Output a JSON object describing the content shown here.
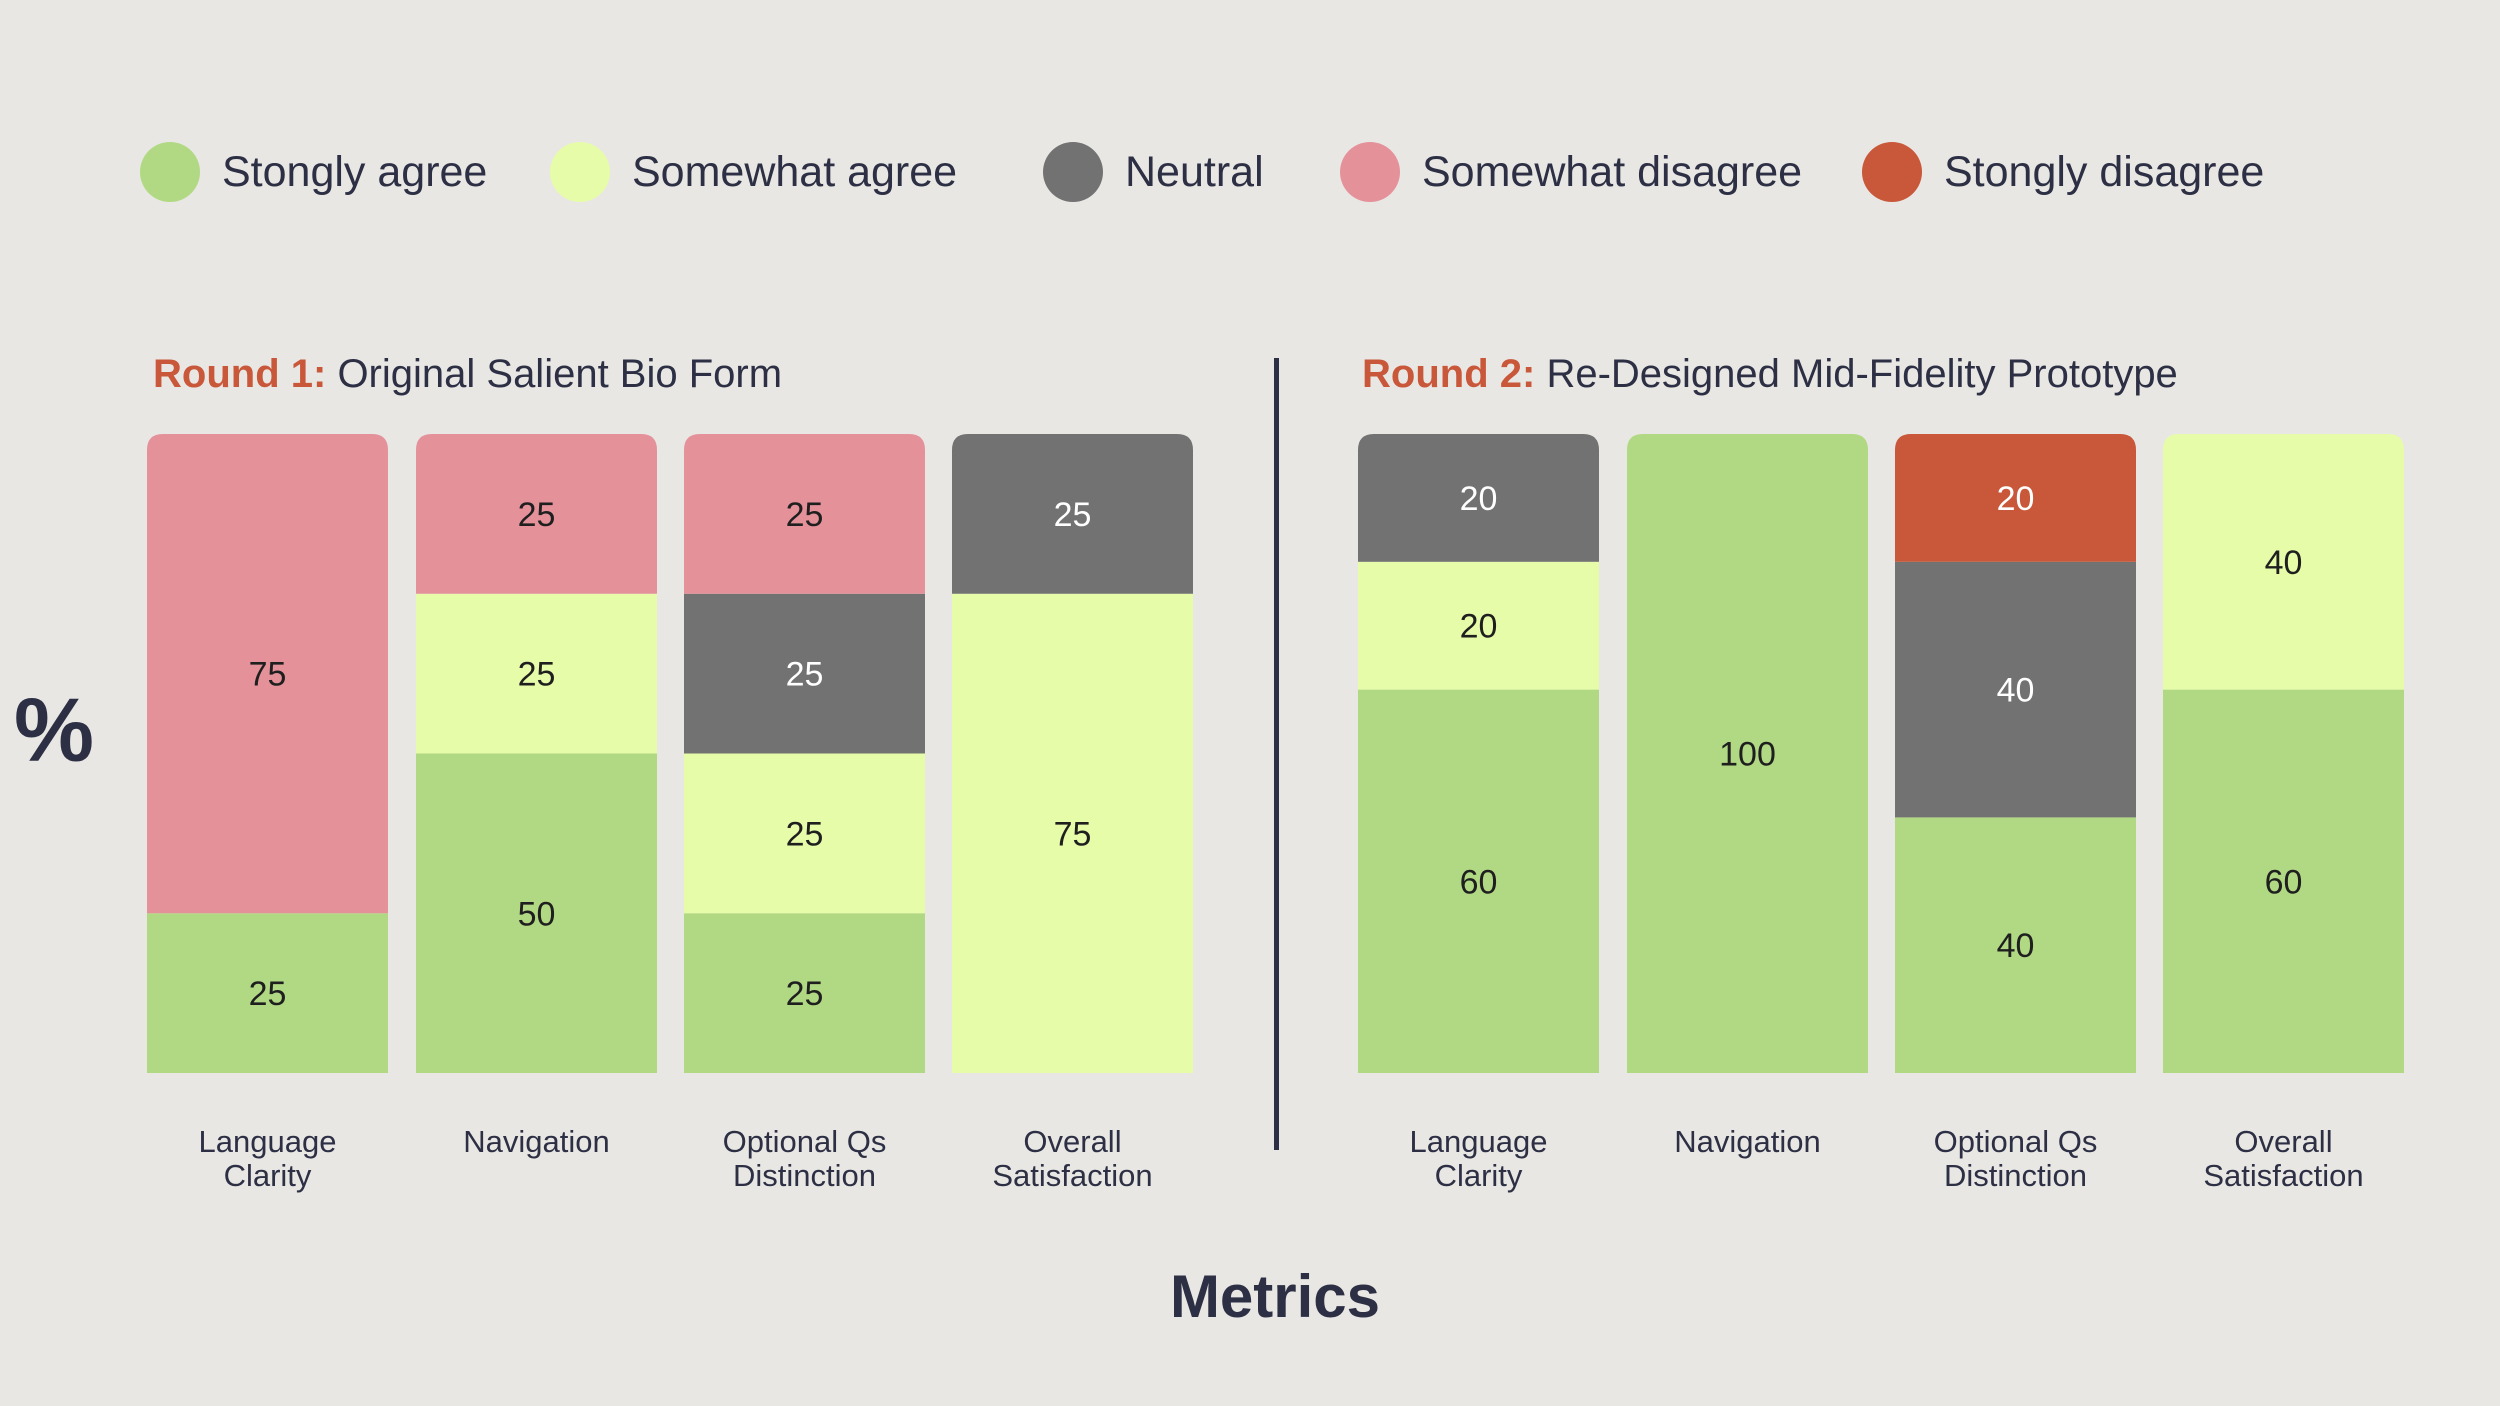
{
  "chart_data": {
    "type": "bar",
    "stacked": true,
    "ylabel": "%",
    "xlabel": "Metrics",
    "ylim": [
      0,
      100
    ],
    "legend": [
      {
        "key": "strongly_agree",
        "label": "Stongly agree",
        "color": "#b1d983"
      },
      {
        "key": "somewhat_agree",
        "label": "Somewhat agree",
        "color": "#e6fca9"
      },
      {
        "key": "neutral",
        "label": "Neutral",
        "color": "#727272"
      },
      {
        "key": "somewhat_disagree",
        "label": "Somewhat disagree",
        "color": "#e5919a"
      },
      {
        "key": "strongly_disagree",
        "label": "Stongly disagree",
        "color": "#c9573a"
      }
    ],
    "panels": [
      {
        "round_label": "Round 1:",
        "title": "Original Salient Bio Form",
        "categories": [
          "Language Clarity",
          "Navigation",
          "Optional Qs Distinction",
          "Overall Satisfaction"
        ],
        "category_lines": [
          [
            "Language",
            "Clarity"
          ],
          [
            "Navigation"
          ],
          [
            "Optional Qs",
            "Distinction"
          ],
          [
            "Overall",
            "Satisfaction"
          ]
        ],
        "series": [
          {
            "name": "Stongly agree",
            "key": "strongly_agree",
            "values": [
              25,
              50,
              25,
              0
            ]
          },
          {
            "name": "Somewhat agree",
            "key": "somewhat_agree",
            "values": [
              0,
              25,
              25,
              75
            ]
          },
          {
            "name": "Neutral",
            "key": "neutral",
            "values": [
              0,
              0,
              25,
              25
            ]
          },
          {
            "name": "Somewhat disagree",
            "key": "somewhat_disagree",
            "values": [
              75,
              25,
              25,
              0
            ]
          },
          {
            "name": "Stongly disagree",
            "key": "strongly_disagree",
            "values": [
              0,
              0,
              0,
              0
            ]
          }
        ]
      },
      {
        "round_label": "Round 2:",
        "title": "Re-Designed Mid-Fidelity Prototype",
        "categories": [
          "Language Clarity",
          "Navigation",
          "Optional Qs Distinction",
          "Overall Satisfaction"
        ],
        "category_lines": [
          [
            "Language",
            "Clarity"
          ],
          [
            "Navigation"
          ],
          [
            "Optional Qs",
            "Distinction"
          ],
          [
            "Overall",
            "Satisfaction"
          ]
        ],
        "series": [
          {
            "name": "Stongly agree",
            "key": "strongly_agree",
            "values": [
              60,
              100,
              40,
              60
            ]
          },
          {
            "name": "Somewhat agree",
            "key": "somewhat_agree",
            "values": [
              20,
              0,
              0,
              40
            ]
          },
          {
            "name": "Neutral",
            "key": "neutral",
            "values": [
              20,
              0,
              40,
              0
            ]
          },
          {
            "name": "Somewhat disagree",
            "key": "somewhat_disagree",
            "values": [
              0,
              0,
              0,
              0
            ]
          },
          {
            "name": "Stongly disagree",
            "key": "strongly_disagree",
            "values": [
              0,
              0,
              20,
              0
            ]
          }
        ]
      }
    ]
  }
}
